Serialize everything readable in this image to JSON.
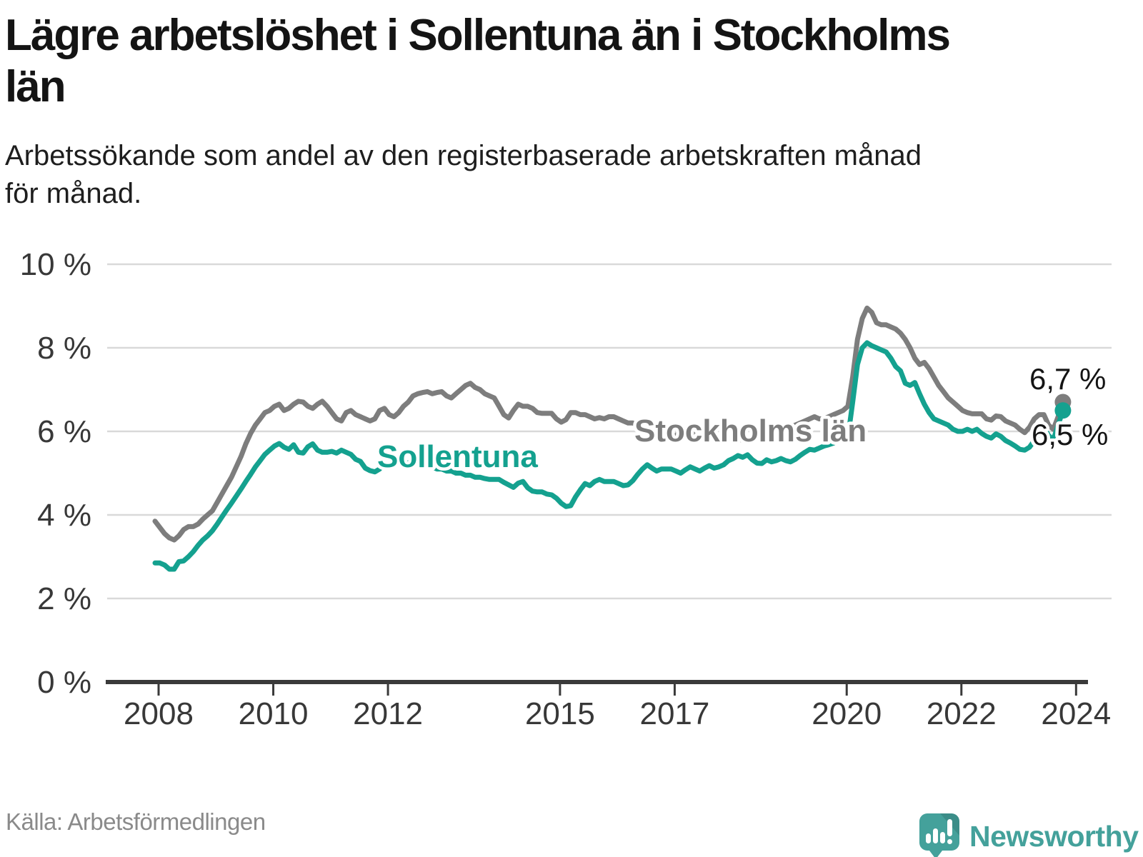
{
  "title": "Lägre arbetslöshet i Sollentuna än i Stockholms\nlän",
  "subtitle": "Arbetssökande som andel av den registerbaserade arbetskraften månad\nför månad.",
  "source": "Källa: Arbetsförmedlingen",
  "branding": {
    "wordmark": "Newsworthy",
    "logo_icon": "bar-chart-speech-bubble-icon",
    "color": "#44a19b"
  },
  "colors": {
    "background": "#ffffff",
    "gridline": "#d9d9d9",
    "axis": "#3a3a3a",
    "title_text": "#141414",
    "source_text": "#8a8a8a"
  },
  "chart_data": {
    "type": "line",
    "unit": "%",
    "grid": true,
    "ylim": [
      0,
      10
    ],
    "x_start": "2008-01",
    "x_end": "2023-11",
    "frequency": "monthly",
    "y_ticks": [
      {
        "value": 0,
        "label": "0 %"
      },
      {
        "value": 2,
        "label": "2 %"
      },
      {
        "value": 4,
        "label": "4 %"
      },
      {
        "value": 6,
        "label": "6 %"
      },
      {
        "value": 8,
        "label": "8 %"
      },
      {
        "value": 10,
        "label": "10 %"
      }
    ],
    "x_ticks": [
      {
        "year": 2008,
        "label": "2008"
      },
      {
        "year": 2010,
        "label": "2010"
      },
      {
        "year": 2012,
        "label": "2012"
      },
      {
        "year": 2015,
        "label": "2015"
      },
      {
        "year": 2017,
        "label": "2017"
      },
      {
        "year": 2020,
        "label": "2020"
      },
      {
        "year": 2022,
        "label": "2022"
      },
      {
        "year": 2024,
        "label": "2024"
      }
    ],
    "series": [
      {
        "name": "Stockholms län",
        "color": "#7d7d7d",
        "end_label": "6,7 %",
        "end_value": 6.7,
        "values": [
          3.85,
          3.7,
          3.55,
          3.45,
          3.4,
          3.5,
          3.65,
          3.72,
          3.72,
          3.78,
          3.9,
          4.0,
          4.1,
          4.3,
          4.5,
          4.7,
          4.9,
          5.15,
          5.4,
          5.7,
          5.95,
          6.15,
          6.3,
          6.45,
          6.5,
          6.6,
          6.65,
          6.5,
          6.55,
          6.65,
          6.72,
          6.7,
          6.6,
          6.55,
          6.65,
          6.72,
          6.6,
          6.45,
          6.3,
          6.25,
          6.45,
          6.5,
          6.4,
          6.35,
          6.3,
          6.25,
          6.3,
          6.5,
          6.55,
          6.4,
          6.35,
          6.45,
          6.6,
          6.7,
          6.85,
          6.9,
          6.93,
          6.95,
          6.9,
          6.93,
          6.95,
          6.85,
          6.8,
          6.9,
          7.0,
          7.1,
          7.15,
          7.05,
          7.0,
          6.9,
          6.85,
          6.8,
          6.6,
          6.4,
          6.32,
          6.5,
          6.65,
          6.6,
          6.6,
          6.55,
          6.45,
          6.43,
          6.43,
          6.43,
          6.3,
          6.22,
          6.28,
          6.45,
          6.45,
          6.4,
          6.4,
          6.35,
          6.3,
          6.33,
          6.3,
          6.35,
          6.35,
          6.3,
          6.25,
          6.2,
          6.2,
          6.15,
          6.1,
          6.05,
          6.0,
          5.95,
          5.92,
          5.9,
          5.88,
          5.9,
          6.0,
          6.02,
          5.97,
          5.93,
          5.9,
          5.87,
          5.85,
          5.85,
          5.86,
          5.88,
          5.85,
          5.82,
          5.8,
          5.8,
          5.82,
          5.85,
          5.9,
          5.92,
          5.95,
          6.0,
          6.05,
          6.1,
          6.1,
          6.12,
          6.15,
          6.2,
          6.25,
          6.3,
          6.35,
          6.3,
          6.3,
          6.35,
          6.4,
          6.45,
          6.5,
          6.6,
          7.3,
          8.2,
          8.7,
          8.95,
          8.85,
          8.6,
          8.55,
          8.55,
          8.5,
          8.45,
          8.35,
          8.2,
          8.0,
          7.75,
          7.6,
          7.65,
          7.5,
          7.3,
          7.1,
          6.95,
          6.8,
          6.7,
          6.6,
          6.5,
          6.45,
          6.42,
          6.42,
          6.42,
          6.3,
          6.27,
          6.37,
          6.35,
          6.25,
          6.2,
          6.15,
          6.05,
          5.97,
          6.1,
          6.3,
          6.4,
          6.4,
          6.15,
          6.05,
          6.35,
          6.7
        ]
      },
      {
        "name": "Sollentuna",
        "color": "#14a18f",
        "end_label": "6,5 %",
        "end_value": 6.5,
        "values": [
          2.85,
          2.85,
          2.8,
          2.7,
          2.7,
          2.88,
          2.9,
          3.0,
          3.12,
          3.27,
          3.4,
          3.5,
          3.62,
          3.78,
          3.95,
          4.12,
          4.28,
          4.45,
          4.62,
          4.8,
          4.97,
          5.15,
          5.3,
          5.45,
          5.55,
          5.65,
          5.71,
          5.62,
          5.57,
          5.68,
          5.5,
          5.48,
          5.63,
          5.7,
          5.55,
          5.5,
          5.5,
          5.52,
          5.48,
          5.55,
          5.5,
          5.45,
          5.33,
          5.28,
          5.12,
          5.06,
          5.03,
          5.1,
          5.28,
          5.33,
          5.3,
          5.3,
          5.26,
          5.24,
          5.3,
          5.26,
          5.2,
          5.2,
          5.15,
          5.1,
          5.1,
          5.05,
          5.05,
          5.0,
          5.0,
          4.95,
          4.95,
          4.9,
          4.9,
          4.87,
          4.85,
          4.85,
          4.85,
          4.78,
          4.72,
          4.66,
          4.76,
          4.8,
          4.65,
          4.57,
          4.55,
          4.55,
          4.5,
          4.48,
          4.4,
          4.28,
          4.2,
          4.22,
          4.43,
          4.6,
          4.75,
          4.7,
          4.8,
          4.85,
          4.8,
          4.8,
          4.8,
          4.75,
          4.7,
          4.72,
          4.82,
          4.97,
          5.1,
          5.2,
          5.12,
          5.05,
          5.1,
          5.1,
          5.1,
          5.05,
          5.0,
          5.08,
          5.15,
          5.1,
          5.05,
          5.12,
          5.18,
          5.12,
          5.15,
          5.2,
          5.3,
          5.35,
          5.42,
          5.38,
          5.44,
          5.32,
          5.24,
          5.23,
          5.32,
          5.27,
          5.3,
          5.35,
          5.3,
          5.27,
          5.33,
          5.42,
          5.5,
          5.57,
          5.55,
          5.6,
          5.65,
          5.68,
          5.72,
          5.78,
          5.8,
          5.85,
          6.7,
          7.6,
          8.0,
          8.12,
          8.05,
          8.0,
          7.95,
          7.9,
          7.75,
          7.55,
          7.45,
          7.15,
          7.1,
          7.17,
          6.9,
          6.65,
          6.45,
          6.3,
          6.25,
          6.2,
          6.15,
          6.05,
          6.0,
          6.0,
          6.05,
          6.0,
          6.05,
          5.95,
          5.88,
          5.84,
          5.94,
          5.88,
          5.78,
          5.72,
          5.65,
          5.57,
          5.55,
          5.62,
          5.78,
          5.95,
          6.1,
          5.9,
          5.8,
          6.15,
          6.5
        ]
      }
    ]
  }
}
